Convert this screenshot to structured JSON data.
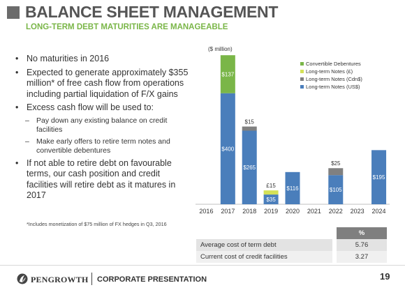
{
  "header": {
    "title": "BALANCE SHEET MANAGEMENT",
    "subtitle": "LONG-TERM DEBT MATURITIES ARE MANAGEABLE"
  },
  "bullets": [
    {
      "text": "No maturities in 2016",
      "level": 1
    },
    {
      "text": "Expected to generate approximately $355 million* of free cash flow from operations including partial liquidation of F/X gains",
      "level": 1
    },
    {
      "text": "Excess cash flow will be used to:",
      "level": 1
    },
    {
      "text": "Pay down any existing balance on credit facilities",
      "level": 2
    },
    {
      "text": "Make early offers to retire term notes and convertible debentures",
      "level": 2
    },
    {
      "text": "If not able to retire debt on favourable terms, our cash position and credit facilities will retire debt as it matures in 2017",
      "level": 1
    }
  ],
  "footnote": "*Includes monetization of $75 million of FX hedges in Q3, 2016",
  "chart_data": {
    "type": "bar",
    "stacked": true,
    "unit_label": "($ million)",
    "categories": [
      "2016",
      "2017",
      "2018",
      "2019",
      "2020",
      "2021",
      "2022",
      "2023",
      "2024"
    ],
    "series": [
      {
        "name": "Long-term Notes (US$)",
        "color": "#4a7ebb",
        "values": [
          0,
          400,
          265,
          35,
          116,
          0,
          105,
          0,
          195
        ]
      },
      {
        "name": "Long-term Notes (Cdn$)",
        "color": "#808080",
        "values": [
          0,
          0,
          15,
          0,
          0,
          0,
          25,
          0,
          0
        ]
      },
      {
        "name": "Long-term Notes (£)",
        "color": "#d4e157",
        "values": [
          0,
          0,
          0,
          15,
          0,
          0,
          0,
          0,
          0
        ]
      },
      {
        "name": "Convertible Debentures",
        "color": "#7ab648",
        "values": [
          0,
          137,
          0,
          0,
          0,
          0,
          0,
          0,
          0
        ]
      }
    ],
    "labels": [
      {
        "category": "2017",
        "series": "Convertible Debentures",
        "text": "$137",
        "position": "inside"
      },
      {
        "category": "2017",
        "series": "Long-term Notes (US$)",
        "text": "$400",
        "position": "inside"
      },
      {
        "category": "2018",
        "series": "Long-term Notes (Cdn$)",
        "text": "$15",
        "position": "above"
      },
      {
        "category": "2018",
        "series": "Long-term Notes (US$)",
        "text": "$265",
        "position": "inside"
      },
      {
        "category": "2019",
        "series": "Long-term Notes (£)",
        "text": "£15",
        "position": "above"
      },
      {
        "category": "2019",
        "series": "Long-term Notes (US$)",
        "text": "$35",
        "position": "inside"
      },
      {
        "category": "2020",
        "series": "Long-term Notes (US$)",
        "text": "$116",
        "position": "inside"
      },
      {
        "category": "2022",
        "series": "Long-term Notes (Cdn$)",
        "text": "$25",
        "position": "above"
      },
      {
        "category": "2022",
        "series": "Long-term Notes (US$)",
        "text": "$105",
        "position": "inside"
      },
      {
        "category": "2024",
        "series": "Long-term Notes (US$)",
        "text": "$195",
        "position": "inside"
      }
    ],
    "legend_order": [
      "Convertible Debentures",
      "Long-term Notes (£)",
      "Long-term Notes (Cdn$)",
      "Long-term Notes (US$)"
    ],
    "legend_position": "top-right",
    "ylim": [
      0,
      540
    ],
    "grid": false
  },
  "table": {
    "header": "%",
    "rows": [
      {
        "label": "Average cost of term debt",
        "value": "5.76"
      },
      {
        "label": "Current cost of credit facilities",
        "value": "3.27"
      }
    ]
  },
  "footer": {
    "brand": "PENGROWTH",
    "section": "CORPORATE PRESENTATION",
    "page": "19"
  },
  "colors": {
    "accent": "#7ab648",
    "title": "#555555",
    "bar_primary": "#4a7ebb"
  },
  "icons": {
    "logo": "pengrowth-logo-icon"
  }
}
